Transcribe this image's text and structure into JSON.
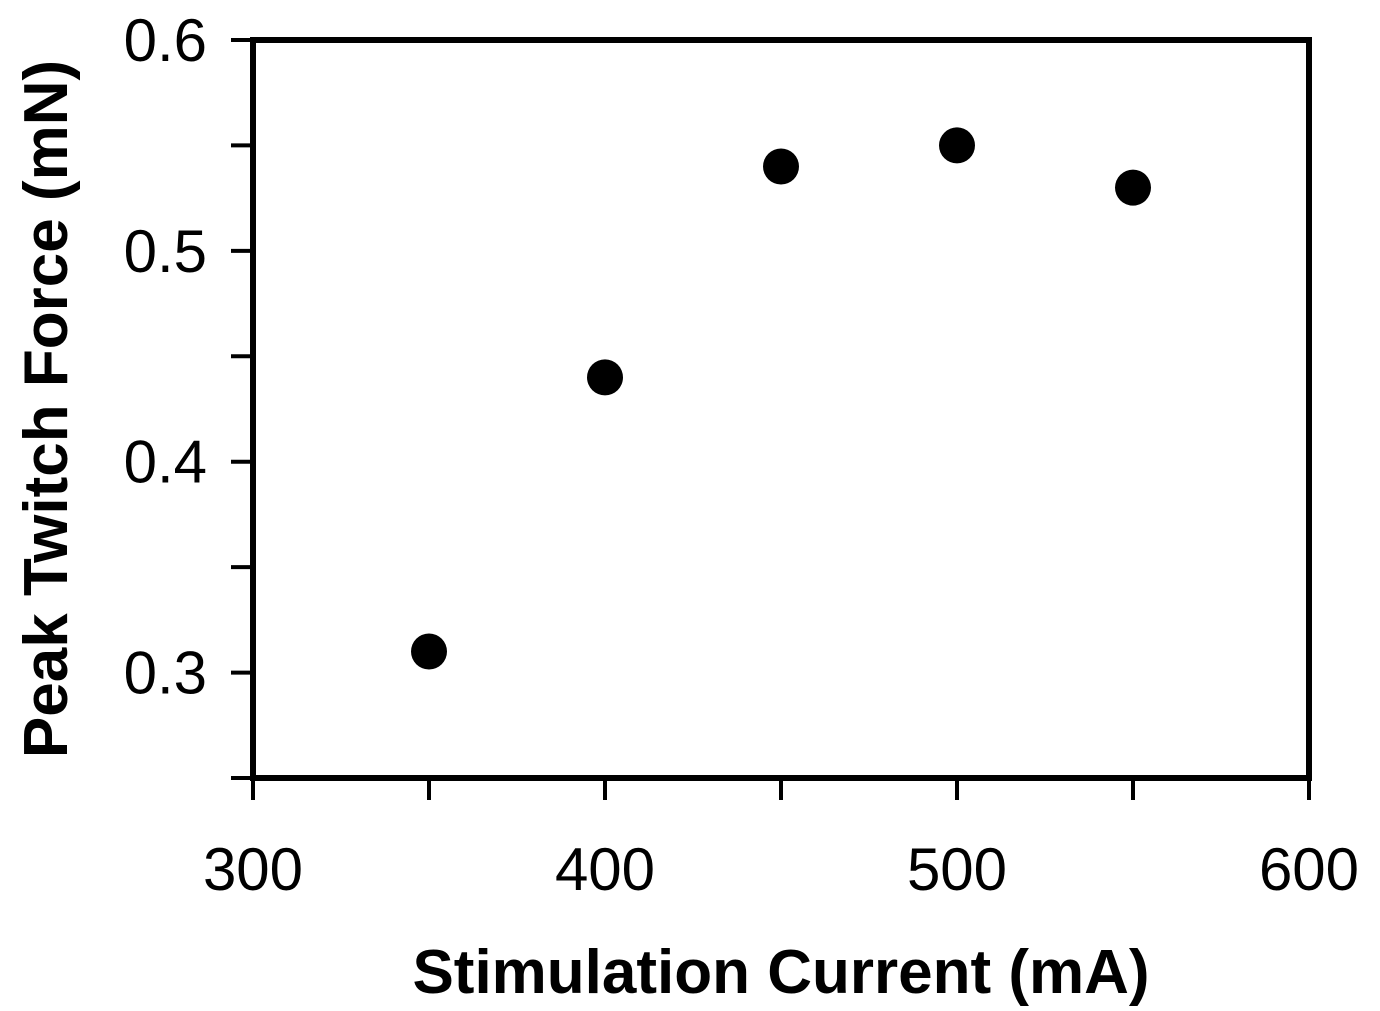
{
  "chart_data": {
    "type": "scatter",
    "title": "",
    "xlabel": "Stimulation Current (mA)",
    "ylabel": "Peak Twitch Force (mN)",
    "xlim": [
      300,
      600
    ],
    "ylim": [
      0.25,
      0.6
    ],
    "x_ticks": [
      300,
      400,
      500,
      600
    ],
    "x_minor_ticks": [
      350,
      450,
      550
    ],
    "y_ticks": [
      0.3,
      0.4,
      0.5,
      0.6
    ],
    "y_minor_ticks": [
      0.25,
      0.35,
      0.45,
      0.55
    ],
    "x_tick_labels": [
      "300",
      "400",
      "500",
      "600"
    ],
    "y_tick_labels": [
      "0.3",
      "0.4",
      "0.5",
      "0.6"
    ],
    "grid": false,
    "legend": "none",
    "marker_color": "#000000",
    "series": [
      {
        "x": [
          350,
          400,
          450,
          500,
          550
        ],
        "y": [
          0.31,
          0.44,
          0.54,
          0.55,
          0.53
        ]
      }
    ]
  }
}
